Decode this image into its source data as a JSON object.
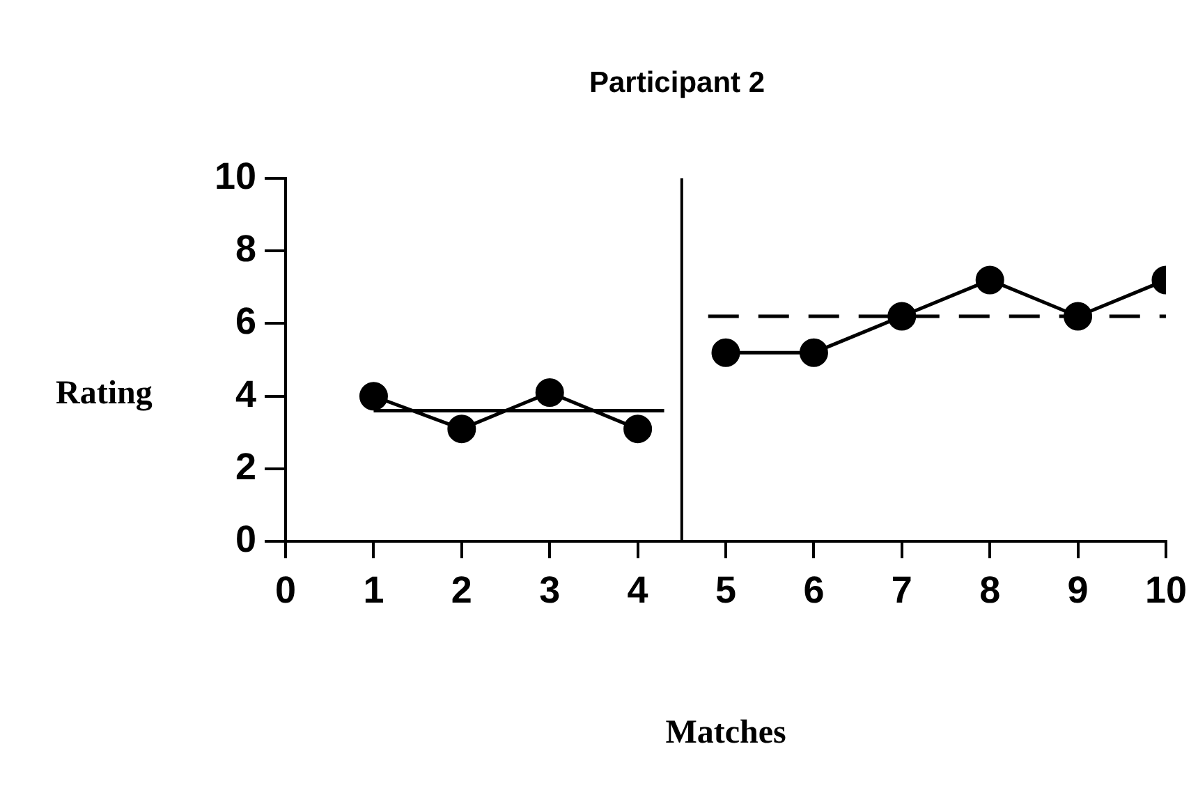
{
  "chart_data": {
    "type": "line",
    "title": "Participant 2",
    "xlabel": "Matches",
    "ylabel": "Rating",
    "xlim": [
      0,
      10
    ],
    "xticks": [
      0,
      1,
      2,
      3,
      4,
      5,
      6,
      7,
      8,
      9,
      10
    ],
    "ylim": [
      0,
      10
    ],
    "yticks": [
      0,
      2,
      4,
      6,
      8,
      10
    ],
    "grid": false,
    "legend": false,
    "marker": "circle",
    "series": [
      {
        "color": "#000000",
        "x": [
          1,
          2,
          3,
          4
        ],
        "values": [
          4,
          3.1,
          4.1,
          3.1
        ]
      },
      {
        "color": "#000000",
        "x": [
          5,
          6,
          7,
          8,
          9,
          10
        ],
        "values": [
          5.2,
          5.2,
          6.2,
          7.2,
          6.2,
          7.2
        ]
      },
      {
        "color": "#000000",
        "marker": "none",
        "line_style": "solid",
        "x": [
          1,
          4.3
        ],
        "values": [
          3.6,
          3.6
        ]
      },
      {
        "color": "#000000",
        "marker": "none",
        "line_style": "dashed",
        "x": [
          4.8,
          10
        ],
        "values": [
          6.2,
          6.2
        ]
      }
    ],
    "ref_lines": [
      {
        "axis": "x",
        "value": 4.5,
        "color": "#000000"
      }
    ]
  }
}
